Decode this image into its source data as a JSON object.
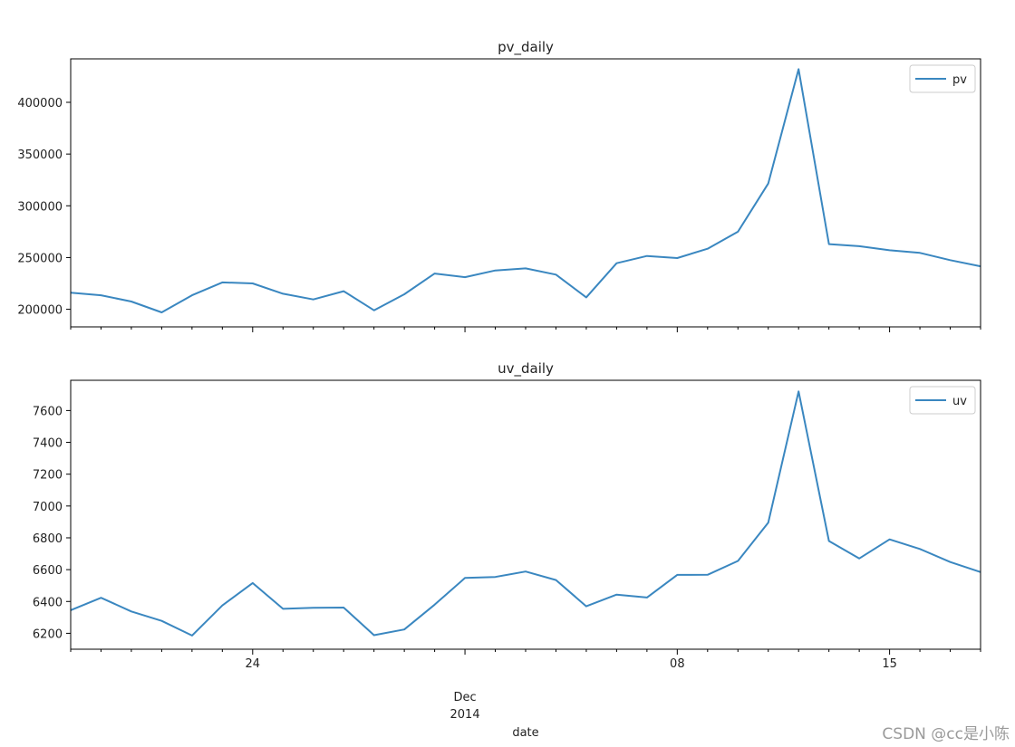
{
  "chart_data": [
    {
      "type": "line",
      "title": "pv_daily",
      "ylim": [
        183000,
        442000
      ],
      "yticks": [
        200000,
        250000,
        300000,
        350000,
        400000
      ],
      "series": [
        {
          "name": "pv",
          "color": "#3a87c0",
          "x": [
            "2014-11-18",
            "2014-11-19",
            "2014-11-20",
            "2014-11-21",
            "2014-11-22",
            "2014-11-23",
            "2014-11-24",
            "2014-11-25",
            "2014-11-26",
            "2014-11-27",
            "2014-11-28",
            "2014-11-29",
            "2014-11-30",
            "2014-12-01",
            "2014-12-02",
            "2014-12-03",
            "2014-12-04",
            "2014-12-05",
            "2014-12-06",
            "2014-12-07",
            "2014-12-08",
            "2014-12-09",
            "2014-12-10",
            "2014-12-11",
            "2014-12-12",
            "2014-12-13",
            "2014-12-14",
            "2014-12-15",
            "2014-12-16",
            "2014-12-17",
            "2014-12-18"
          ],
          "values": [
            216000,
            213500,
            207500,
            197000,
            213500,
            226000,
            225000,
            215000,
            209500,
            217500,
            199000,
            214500,
            234500,
            231000,
            237500,
            239500,
            233500,
            211500,
            244500,
            251500,
            249500,
            258500,
            275000,
            321500,
            432000,
            263000,
            261000,
            257000,
            254500,
            247500,
            241500
          ]
        }
      ],
      "legend": "top-right",
      "grid": false
    },
    {
      "type": "line",
      "title": "uv_daily",
      "xlabel": "date",
      "ylim": [
        6100,
        7790
      ],
      "yticks": [
        6200,
        6400,
        6600,
        6800,
        7000,
        7200,
        7400,
        7600
      ],
      "xticks": [
        {
          "date": "2014-11-24",
          "label": "24"
        },
        {
          "date": "2014-12-08",
          "label": "08"
        },
        {
          "date": "2014-12-15",
          "label": "15"
        }
      ],
      "month_label": {
        "date": "2014-12-01",
        "line1": "Dec",
        "line2": "2014"
      },
      "series": [
        {
          "name": "uv",
          "color": "#3a87c0",
          "x": [
            "2014-11-18",
            "2014-11-19",
            "2014-11-20",
            "2014-11-21",
            "2014-11-22",
            "2014-11-23",
            "2014-11-24",
            "2014-11-25",
            "2014-11-26",
            "2014-11-27",
            "2014-11-28",
            "2014-11-29",
            "2014-11-30",
            "2014-12-01",
            "2014-12-02",
            "2014-12-03",
            "2014-12-04",
            "2014-12-05",
            "2014-12-06",
            "2014-12-07",
            "2014-12-08",
            "2014-12-09",
            "2014-12-10",
            "2014-12-11",
            "2014-12-12",
            "2014-12-13",
            "2014-12-14",
            "2014-12-15",
            "2014-12-16",
            "2014-12-17",
            "2014-12-18"
          ],
          "values": [
            6345,
            6423,
            6337,
            6278,
            6186,
            6375,
            6516,
            6354,
            6360,
            6362,
            6188,
            6224,
            6380,
            6548,
            6554,
            6588,
            6535,
            6370,
            6443,
            6425,
            6567,
            6568,
            6655,
            6895,
            7720,
            6780,
            6670,
            6790,
            6730,
            6648,
            6585
          ]
        }
      ],
      "legend": "top-right",
      "grid": false
    }
  ],
  "watermark": "CSDN @cc是小陈"
}
